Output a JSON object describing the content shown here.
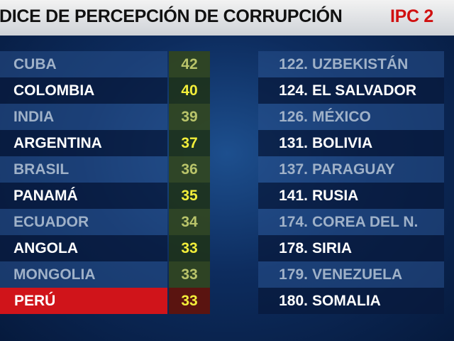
{
  "header": {
    "title": "DICE DE PERCEPCIÓN DE CORRUPCIÓN",
    "title_highlight": "IPC 2"
  },
  "left_table": {
    "rows": [
      [
        "CUBA",
        "42"
      ],
      [
        "COLOMBIA",
        "40"
      ],
      [
        "INDIA",
        "39"
      ],
      [
        "ARGENTINA",
        "37"
      ],
      [
        "BRASIL",
        "36"
      ],
      [
        "PANAMÁ",
        "35"
      ],
      [
        "ECUADOR",
        "34"
      ],
      [
        "ANGOLA",
        "33"
      ],
      [
        "MONGOLIA",
        "33"
      ],
      [
        "PERÚ",
        "33"
      ]
    ]
  },
  "right_table": {
    "rows": [
      [
        "122.",
        "UZBEKISTÁN"
      ],
      [
        "124.",
        "EL SALVADOR"
      ],
      [
        "126.",
        "MÉXICO"
      ],
      [
        "131.",
        "BOLIVIA"
      ],
      [
        "137.",
        "PARAGUAY"
      ],
      [
        "141.",
        "RUSIA"
      ],
      [
        "174.",
        "COREA DEL N."
      ],
      [
        "178.",
        "SIRIA"
      ],
      [
        "179.",
        "VENEZUELA"
      ],
      [
        "180.",
        "SOMALIA"
      ]
    ]
  }
}
